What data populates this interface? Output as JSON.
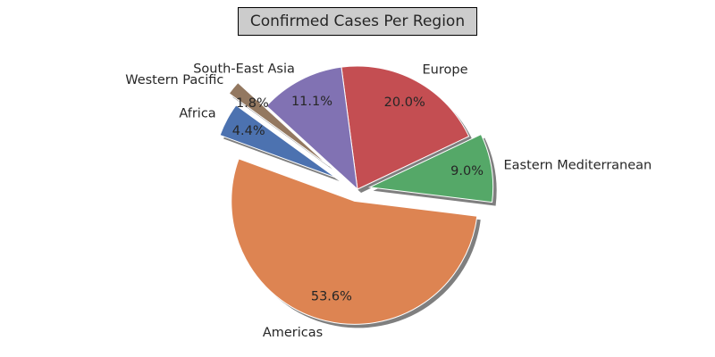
{
  "chart_data": {
    "type": "pie",
    "title": "Confirmed Cases Per Region",
    "start_angle_deg": 144,
    "direction": "counterclockwise",
    "shadow": true,
    "slices": [
      {
        "label": "Africa",
        "percent": 4.4,
        "percent_label": "4.4%",
        "color": "#4c72b0",
        "explode": 0.2
      },
      {
        "label": "Americas",
        "percent": 53.6,
        "percent_label": "53.6%",
        "color": "#dd8452",
        "explode": 0.1
      },
      {
        "label": "Eastern Mediterranean",
        "percent": 9.0,
        "percent_label": "9.0%",
        "color": "#55a868",
        "explode": 0.1
      },
      {
        "label": "Europe",
        "percent": 20.0,
        "percent_label": "20.0%",
        "color": "#c44e52",
        "explode": 0.0
      },
      {
        "label": "South-East Asia",
        "percent": 11.1,
        "percent_label": "11.1%",
        "color": "#8172b3",
        "explode": 0.0
      },
      {
        "label": "Western Pacific",
        "percent": 1.8,
        "percent_label": "1.8%",
        "color": "#937860",
        "explode": 0.3
      }
    ]
  }
}
